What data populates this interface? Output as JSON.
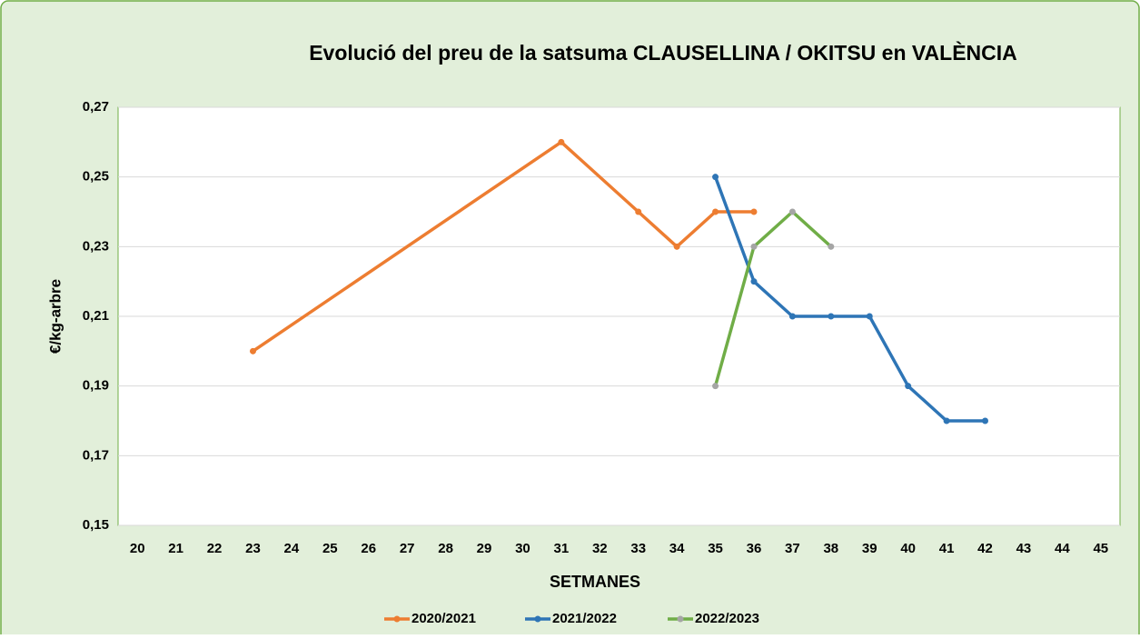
{
  "chart_data": {
    "type": "line",
    "title": "Evolució del preu de la satsuma CLAUSELLINA / OKITSU en VALÈNCIA",
    "x_label": "SETMANES",
    "y_label": "€/kg-arbre",
    "xlim": [
      19.5,
      45.5
    ],
    "xticks": [
      20,
      21,
      22,
      23,
      24,
      25,
      26,
      27,
      28,
      29,
      30,
      31,
      32,
      33,
      34,
      35,
      36,
      37,
      38,
      39,
      40,
      41,
      42,
      43,
      44,
      45
    ],
    "ylim": [
      0.15,
      0.27
    ],
    "yticks": [
      {
        "value": 0.15,
        "label": "0,15"
      },
      {
        "value": 0.17,
        "label": "0,17"
      },
      {
        "value": 0.19,
        "label": "0,19"
      },
      {
        "value": 0.21,
        "label": "0,21"
      },
      {
        "value": 0.23,
        "label": "0,23"
      },
      {
        "value": 0.25,
        "label": "0,25"
      },
      {
        "value": 0.27,
        "label": "0,27"
      }
    ],
    "grid": true,
    "legend": "bottom",
    "series": [
      {
        "name": "2020/2021",
        "color": "#ed7d31",
        "marker_color": "#ed7d31",
        "x": [
          23,
          31,
          33,
          34,
          35,
          36
        ],
        "values": [
          0.2,
          0.26,
          0.24,
          0.23,
          0.24,
          0.24
        ]
      },
      {
        "name": "2021/2022",
        "color": "#2e75b6",
        "marker_color": "#2e75b6",
        "x": [
          35,
          36,
          37,
          38,
          39,
          40,
          41,
          42
        ],
        "values": [
          0.25,
          0.22,
          0.21,
          0.21,
          0.21,
          0.19,
          0.18,
          0.18
        ]
      },
      {
        "name": "2022/2023",
        "color": "#70ad47",
        "marker_color": "#a5a5a5",
        "x": [
          35,
          36,
          37,
          38
        ],
        "values": [
          0.19,
          0.23,
          0.24,
          0.23
        ]
      }
    ]
  }
}
